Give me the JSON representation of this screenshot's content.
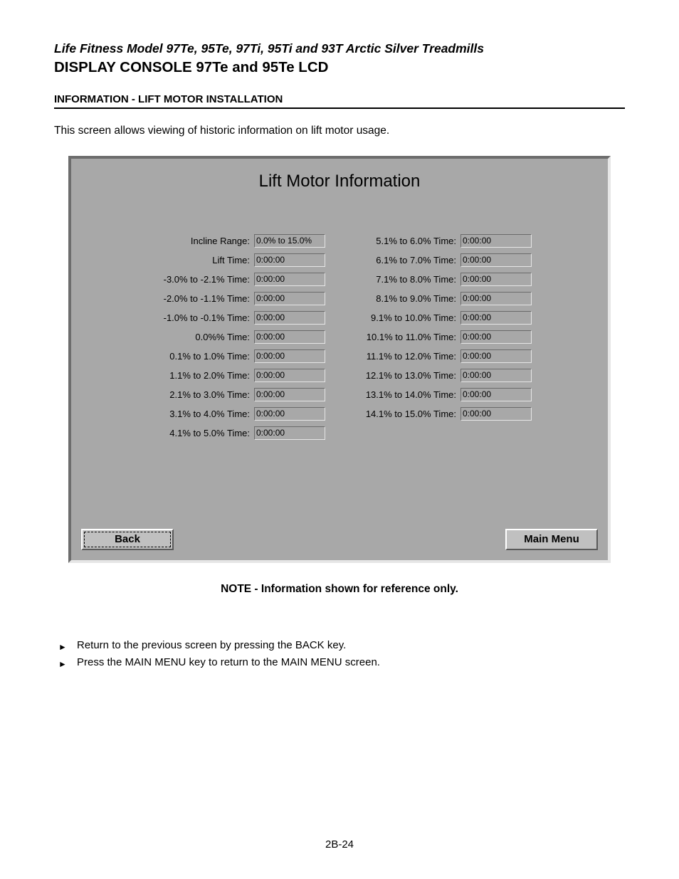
{
  "header": {
    "title_italic": "Life Fitness Model 97Te, 95Te, 97Ti, 95Ti and 93T Arctic Silver Treadmills",
    "title_bold": "DISPLAY CONSOLE 97Te and 95Te LCD",
    "section": "INFORMATION - LIFT MOTOR INSTALLATION",
    "intro": "This screen allows viewing of historic information on lift motor usage."
  },
  "panel": {
    "title": "Lift Motor Information",
    "background_color": "#a8a8a8",
    "left_rows": [
      {
        "label": "Incline Range:",
        "value": "0.0% to 15.0%"
      },
      {
        "label": "Lift Time:",
        "value": "0:00:00"
      },
      {
        "label": "-3.0% to -2.1% Time:",
        "value": "0:00:00"
      },
      {
        "label": "-2.0% to -1.1% Time:",
        "value": "0:00:00"
      },
      {
        "label": "-1.0% to -0.1% Time:",
        "value": "0:00:00"
      },
      {
        "label": "0.0%% Time:",
        "value": "0:00:00"
      },
      {
        "label": "0.1% to 1.0% Time:",
        "value": "0:00:00"
      },
      {
        "label": "1.1% to 2.0% Time:",
        "value": "0:00:00"
      },
      {
        "label": "2.1% to 3.0% Time:",
        "value": "0:00:00"
      },
      {
        "label": "3.1% to 4.0% Time:",
        "value": "0:00:00"
      },
      {
        "label": "4.1% to 5.0% Time:",
        "value": "0:00:00"
      }
    ],
    "right_rows": [
      {
        "label": "5.1% to 6.0% Time:",
        "value": "0:00:00"
      },
      {
        "label": "6.1% to 7.0% Time:",
        "value": "0:00:00"
      },
      {
        "label": "7.1% to 8.0% Time:",
        "value": "0:00:00"
      },
      {
        "label": "8.1% to 9.0% Time:",
        "value": "0:00:00"
      },
      {
        "label": "9.1% to 10.0% Time:",
        "value": "0:00:00"
      },
      {
        "label": "10.1% to 11.0% Time:",
        "value": "0:00:00"
      },
      {
        "label": "11.1% to 12.0% Time:",
        "value": "0:00:00"
      },
      {
        "label": "12.1% to 13.0% Time:",
        "value": "0:00:00"
      },
      {
        "label": "13.1% to 14.0% Time:",
        "value": "0:00:00"
      },
      {
        "label": "14.1% to 15.0% Time:",
        "value": "0:00:00"
      }
    ],
    "back_label": "Back",
    "main_menu_label": "Main Menu"
  },
  "note": "NOTE - Information shown for reference only.",
  "bullets": [
    "Return to the previous screen by pressing the BACK key.",
    "Press the MAIN MENU key to return to the MAIN MENU screen."
  ],
  "page_number": "2B-24"
}
